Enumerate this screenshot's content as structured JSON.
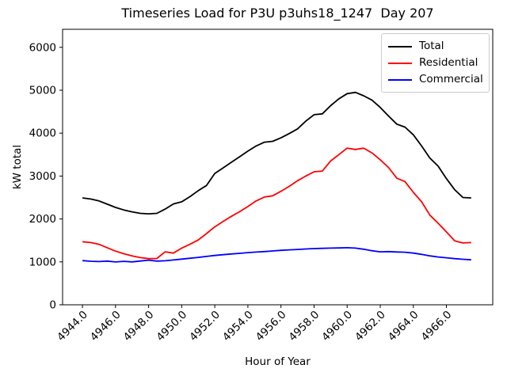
{
  "chart_data": {
    "type": "line",
    "title": "Timeseries Load for P3U p3uhs18_1247  Day 207",
    "xlabel": "Hour of Year",
    "ylabel": "kW total",
    "xlim": [
      4942.8,
      4968.8
    ],
    "ylim": [
      0,
      6420
    ],
    "grid": false,
    "legend_position": "upper right",
    "xtick_labels": [
      "4944.0",
      "4946.0",
      "4948.0",
      "4950.0",
      "4952.0",
      "4954.0",
      "4956.0",
      "4958.0",
      "4960.0",
      "4962.0",
      "4964.0",
      "4966.0"
    ],
    "xtick_values": [
      4944,
      4946,
      4948,
      4950,
      4952,
      4954,
      4956,
      4958,
      4960,
      4962,
      4964,
      4966
    ],
    "ytick_labels": [
      "0",
      "1000",
      "2000",
      "3000",
      "4000",
      "5000",
      "6000"
    ],
    "ytick_values": [
      0,
      1000,
      2000,
      3000,
      4000,
      5000,
      6000
    ],
    "x": [
      4944,
      4944.5,
      4945,
      4945.5,
      4946,
      4946.5,
      4947,
      4947.5,
      4948,
      4948.5,
      4949,
      4949.5,
      4950,
      4950.5,
      4951,
      4951.5,
      4952,
      4952.5,
      4953,
      4953.5,
      4954,
      4954.5,
      4955,
      4955.5,
      4956,
      4956.5,
      4957,
      4957.5,
      4958,
      4958.5,
      4959,
      4959.5,
      4960,
      4960.5,
      4961,
      4961.5,
      4962,
      4962.5,
      4963,
      4963.5,
      4964,
      4964.5,
      4965,
      4965.5,
      4966,
      4966.5,
      4967,
      4967.5
    ],
    "series": [
      {
        "name": "Total",
        "color": "#000000",
        "values": [
          2490,
          2465,
          2420,
          2345,
          2270,
          2210,
          2165,
          2130,
          2120,
          2130,
          2230,
          2350,
          2400,
          2520,
          2660,
          2780,
          3060,
          3190,
          3320,
          3450,
          3580,
          3700,
          3790,
          3810,
          3890,
          3990,
          4100,
          4280,
          4430,
          4450,
          4640,
          4800,
          4920,
          4950,
          4870,
          4770,
          4600,
          4400,
          4210,
          4140,
          3960,
          3700,
          3420,
          3230,
          2940,
          2680,
          2500,
          2490
        ]
      },
      {
        "name": "Residential",
        "color": "#ff0000",
        "values": [
          1470,
          1450,
          1410,
          1330,
          1250,
          1190,
          1140,
          1100,
          1075,
          1080,
          1235,
          1205,
          1320,
          1410,
          1510,
          1660,
          1815,
          1940,
          2060,
          2170,
          2290,
          2420,
          2510,
          2540,
          2645,
          2760,
          2890,
          3000,
          3100,
          3115,
          3350,
          3500,
          3650,
          3620,
          3650,
          3540,
          3380,
          3200,
          2950,
          2870,
          2620,
          2400,
          2090,
          1900,
          1700,
          1490,
          1440,
          1450
        ]
      },
      {
        "name": "Commercial",
        "color": "#0000ff",
        "values": [
          1030,
          1015,
          1008,
          1018,
          998,
          1012,
          1000,
          1020,
          1040,
          1018,
          1025,
          1045,
          1065,
          1085,
          1105,
          1128,
          1150,
          1168,
          1185,
          1200,
          1215,
          1228,
          1240,
          1255,
          1270,
          1280,
          1290,
          1300,
          1310,
          1315,
          1320,
          1325,
          1330,
          1320,
          1295,
          1260,
          1235,
          1240,
          1230,
          1225,
          1205,
          1175,
          1140,
          1115,
          1095,
          1075,
          1060,
          1048
        ]
      }
    ]
  }
}
